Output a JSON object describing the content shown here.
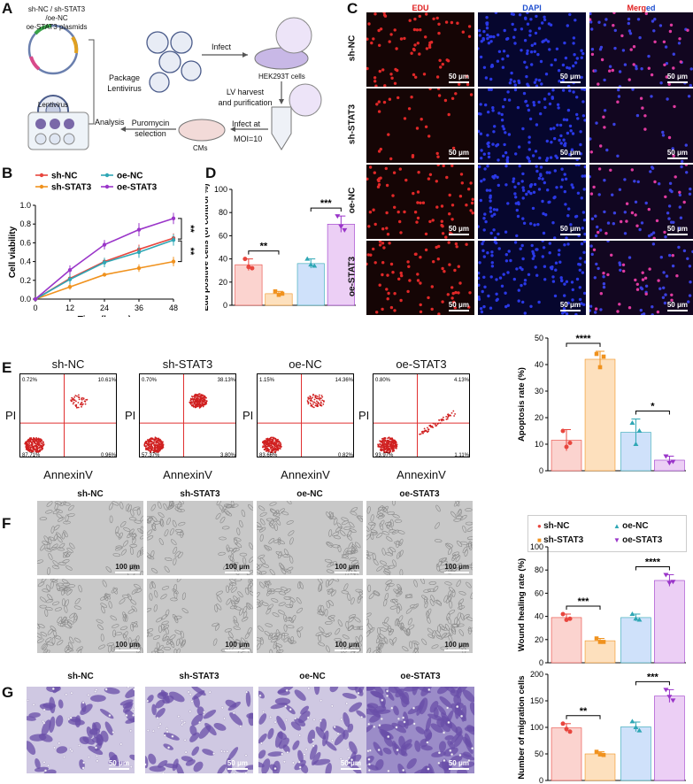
{
  "panels": {
    "A": "A",
    "B": "B",
    "C": "C",
    "D": "D",
    "E": "E",
    "F": "F",
    "G": "G"
  },
  "schematic": {
    "plasmid_title_1": "sh-NC / sh-STAT3 /oe-NC",
    "plasmid_title_2": "oe-STAT3 plasmids",
    "package_1": "Package",
    "package_2": "Lentivirus",
    "lentivirus": "Lentivirus",
    "infect": "Infect",
    "hek": "HEK293T cells",
    "lv_1": "LV harvest",
    "lv_2": "and purification",
    "infect_at": "Infect at",
    "moi": "MOI=10",
    "cms": "CMs",
    "puro_1": "Puromycin",
    "puro_2": "selection",
    "analysis": "Analysis"
  },
  "colors": {
    "sh_nc": "#e8463e",
    "sh_stat3": "#f0921e",
    "oe_nc": "#2fa7b5",
    "oe_stat3": "#9a35c9",
    "bar_sh_nc": "#fbd3cf",
    "bar_sh_stat3": "#fde0bd",
    "bar_oe_nc": "#cfe1fa",
    "bar_oe_stat3": "#eccff5",
    "edu": "#e02020",
    "dapi": "#2030d0"
  },
  "chart_data": [
    {
      "id": "B",
      "type": "line",
      "xlabel": "Time (hours)",
      "ylabel": "Cell viability",
      "x": [
        0,
        12,
        24,
        36,
        48
      ],
      "xlim": [
        0,
        48
      ],
      "ylim": [
        0,
        1.0
      ],
      "xticks": [
        "0",
        "12",
        "24",
        "36",
        "48"
      ],
      "yticks": [
        "0.0",
        "0.2",
        "0.4",
        "0.6",
        "0.8",
        "1.0"
      ],
      "series": [
        {
          "name": "sh-NC",
          "color": "#e8463e",
          "values": [
            0,
            0.22,
            0.4,
            0.53,
            0.65
          ],
          "err": [
            0,
            0.04,
            0.04,
            0.05,
            0.05
          ]
        },
        {
          "name": "sh-STAT3",
          "color": "#f0921e",
          "values": [
            0,
            0.13,
            0.26,
            0.33,
            0.4
          ],
          "err": [
            0,
            0.03,
            0.02,
            0.04,
            0.05
          ]
        },
        {
          "name": "oe-NC",
          "color": "#2fa7b5",
          "values": [
            0,
            0.21,
            0.39,
            0.5,
            0.63
          ],
          "err": [
            0,
            0.05,
            0.05,
            0.06,
            0.06
          ]
        },
        {
          "name": "oe-STAT3",
          "color": "#9a35c9",
          "values": [
            0,
            0.31,
            0.58,
            0.74,
            0.86
          ],
          "err": [
            0,
            0.05,
            0.05,
            0.07,
            0.06
          ]
        }
      ],
      "significance": [
        "**",
        "**"
      ]
    },
    {
      "id": "D",
      "type": "bar",
      "ylabel": "Edu positive cells (of control %)",
      "categories": [
        "sh-NC",
        "sh-STAT3",
        "oe-NC",
        "oe-STAT3"
      ],
      "values": [
        35,
        10,
        36,
        70
      ],
      "err": [
        5,
        2,
        4,
        7
      ],
      "points": [
        [
          40,
          33,
          32
        ],
        [
          12,
          9,
          10
        ],
        [
          40,
          35,
          34
        ],
        [
          77,
          68,
          65
        ]
      ],
      "ylim": [
        0,
        100
      ],
      "yticks": [
        "0",
        "20",
        "40",
        "60",
        "80",
        "100"
      ],
      "significance": [
        "**",
        "***"
      ]
    },
    {
      "id": "E",
      "type": "bar",
      "ylabel": "Apoptosis rate (%)",
      "categories": [
        "sh-NC",
        "sh-STAT3",
        "oe-NC",
        "oe-STAT3"
      ],
      "values": [
        11.5,
        42,
        14.5,
        4
      ],
      "err": [
        4,
        3,
        5,
        1.5
      ],
      "points": [
        [
          15,
          9,
          10.5
        ],
        [
          44,
          39,
          43
        ],
        [
          18,
          10,
          15
        ],
        [
          5.5,
          3,
          3.5
        ]
      ],
      "ylim": [
        0,
        50
      ],
      "yticks": [
        "0",
        "10",
        "20",
        "30",
        "40",
        "50"
      ],
      "significance": [
        "****",
        "*"
      ]
    },
    {
      "id": "F",
      "type": "bar",
      "ylabel": "Wound healing rate (%)",
      "categories": [
        "sh-NC",
        "sh-STAT3",
        "oe-NC",
        "oe-STAT3"
      ],
      "values": [
        39,
        19,
        39,
        71
      ],
      "err": [
        3,
        2,
        3,
        5
      ],
      "points": [
        [
          42,
          37,
          38
        ],
        [
          21,
          18,
          18
        ],
        [
          42,
          38,
          37
        ],
        [
          76,
          69,
          70
        ]
      ],
      "ylim": [
        0,
        100
      ],
      "yticks": [
        "0",
        "20",
        "40",
        "60",
        "80",
        "100"
      ],
      "significance": [
        "***",
        "****"
      ]
    },
    {
      "id": "G",
      "type": "bar",
      "ylabel": "Number of migration cells",
      "categories": [
        "sh-NC",
        "sh-STAT3",
        "oe-NC",
        "oe-STAT3"
      ],
      "values": [
        99,
        50,
        101,
        159
      ],
      "err": [
        8,
        4,
        9,
        12
      ],
      "points": [
        [
          107,
          97,
          92
        ],
        [
          54,
          49,
          48
        ],
        [
          111,
          100,
          94
        ],
        [
          171,
          158,
          151
        ]
      ],
      "ylim": [
        0,
        200
      ],
      "yticks": [
        "0",
        "50",
        "100",
        "150",
        "200"
      ],
      "significance": [
        "**",
        "***"
      ]
    }
  ],
  "legend_B": [
    "sh-NC",
    "oe-NC",
    "sh-STAT3",
    "oe-STAT3"
  ],
  "legend_F": [
    "sh-NC",
    "oe-NC",
    "sh-STAT3",
    "oe-STAT3"
  ],
  "C": {
    "cols": [
      "EDU",
      "DAPI",
      "Merged"
    ],
    "merged_parts": [
      "Merg",
      "ed"
    ],
    "rows": [
      "sh-NC",
      "sh-STAT3",
      "oe-NC",
      "oe-STAT3"
    ],
    "scale": "50 μm"
  },
  "E_flow": {
    "titles": [
      "sh-NC",
      "sh-STAT3",
      "oe-NC",
      "oe-STAT3"
    ],
    "ylabel": "PI",
    "xlabel": "AnnexinV",
    "q_ul": [
      "0.72%",
      "0.70%",
      "1.15%",
      "0.80%"
    ],
    "q_ur": [
      "10.61%",
      "38.13%",
      "14.36%",
      "4.13%"
    ],
    "q_ll": [
      "87.71%",
      "57.37%",
      "83.66%",
      "93.97%"
    ],
    "q_lr": [
      "0.96%",
      "3.80%",
      "0.82%",
      "1.11%"
    ]
  },
  "F_wound": {
    "titles": [
      "sh-NC",
      "sh-STAT3",
      "oe-NC",
      "oe-STAT3"
    ],
    "scale": "100 μm"
  },
  "G_mig": {
    "titles": [
      "sh-NC",
      "sh-STAT3",
      "oe-NC",
      "oe-STAT3"
    ],
    "scale": "50 μm"
  }
}
